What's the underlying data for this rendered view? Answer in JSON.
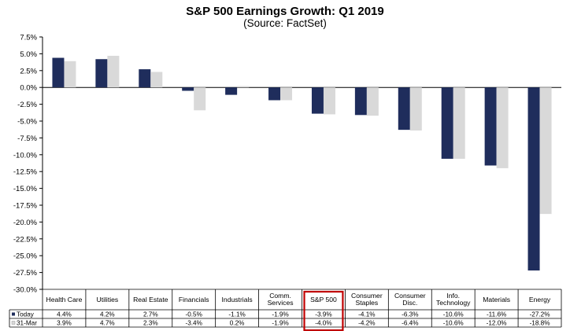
{
  "chart_data": {
    "type": "bar",
    "title": "S&P 500 Earnings Growth: Q1 2019",
    "subtitle": "(Source: FactSet)",
    "categories": [
      [
        "Health Care"
      ],
      [
        "Utilities"
      ],
      [
        "Real Estate"
      ],
      [
        "Financials"
      ],
      [
        "Industrials"
      ],
      [
        "Comm.",
        "Services"
      ],
      [
        "S&P 500"
      ],
      [
        "Consumer",
        "Staples"
      ],
      [
        "Consumer",
        "Disc."
      ],
      [
        "Info.",
        "Technology"
      ],
      [
        "Materials"
      ],
      [
        "Energy"
      ]
    ],
    "series": [
      {
        "name": "Today",
        "color": "#1f2d5c",
        "values": [
          4.4,
          4.2,
          2.7,
          -0.5,
          -1.1,
          -1.9,
          -3.9,
          -4.1,
          -6.3,
          -10.6,
          -11.6,
          -27.2
        ],
        "labels": [
          "4.4%",
          "4.2%",
          "2.7%",
          "-0.5%",
          "-1.1%",
          "-1.9%",
          "-3.9%",
          "-4.1%",
          "-6.3%",
          "-10.6%",
          "-11.6%",
          "-27.2%"
        ]
      },
      {
        "name": "31-Mar",
        "color": "#d9d9d9",
        "values": [
          3.9,
          4.7,
          2.3,
          -3.4,
          0.2,
          -1.9,
          -4.0,
          -4.2,
          -6.4,
          -10.6,
          -12.0,
          -18.8
        ],
        "labels": [
          "3.9%",
          "4.7%",
          "2.3%",
          "-3.4%",
          "0.2%",
          "-1.9%",
          "-4.0%",
          "-4.2%",
          "-6.4%",
          "-10.6%",
          "-12.0%",
          "-18.8%"
        ]
      }
    ],
    "ylim": [
      -30,
      7.5
    ],
    "ytick_step": 2.5,
    "ytick_labels": [
      "7.5%",
      "5.0%",
      "2.5%",
      "0.0%",
      "-2.5%",
      "-5.0%",
      "-7.5%",
      "-10.0%",
      "-12.5%",
      "-15.0%",
      "-17.5%",
      "-20.0%",
      "-22.5%",
      "-25.0%",
      "-27.5%",
      "-30.0%"
    ],
    "legend_placement": "data table below chart",
    "highlight_category": "S&P 500",
    "highlight_color": "#c00000",
    "grid": false
  }
}
